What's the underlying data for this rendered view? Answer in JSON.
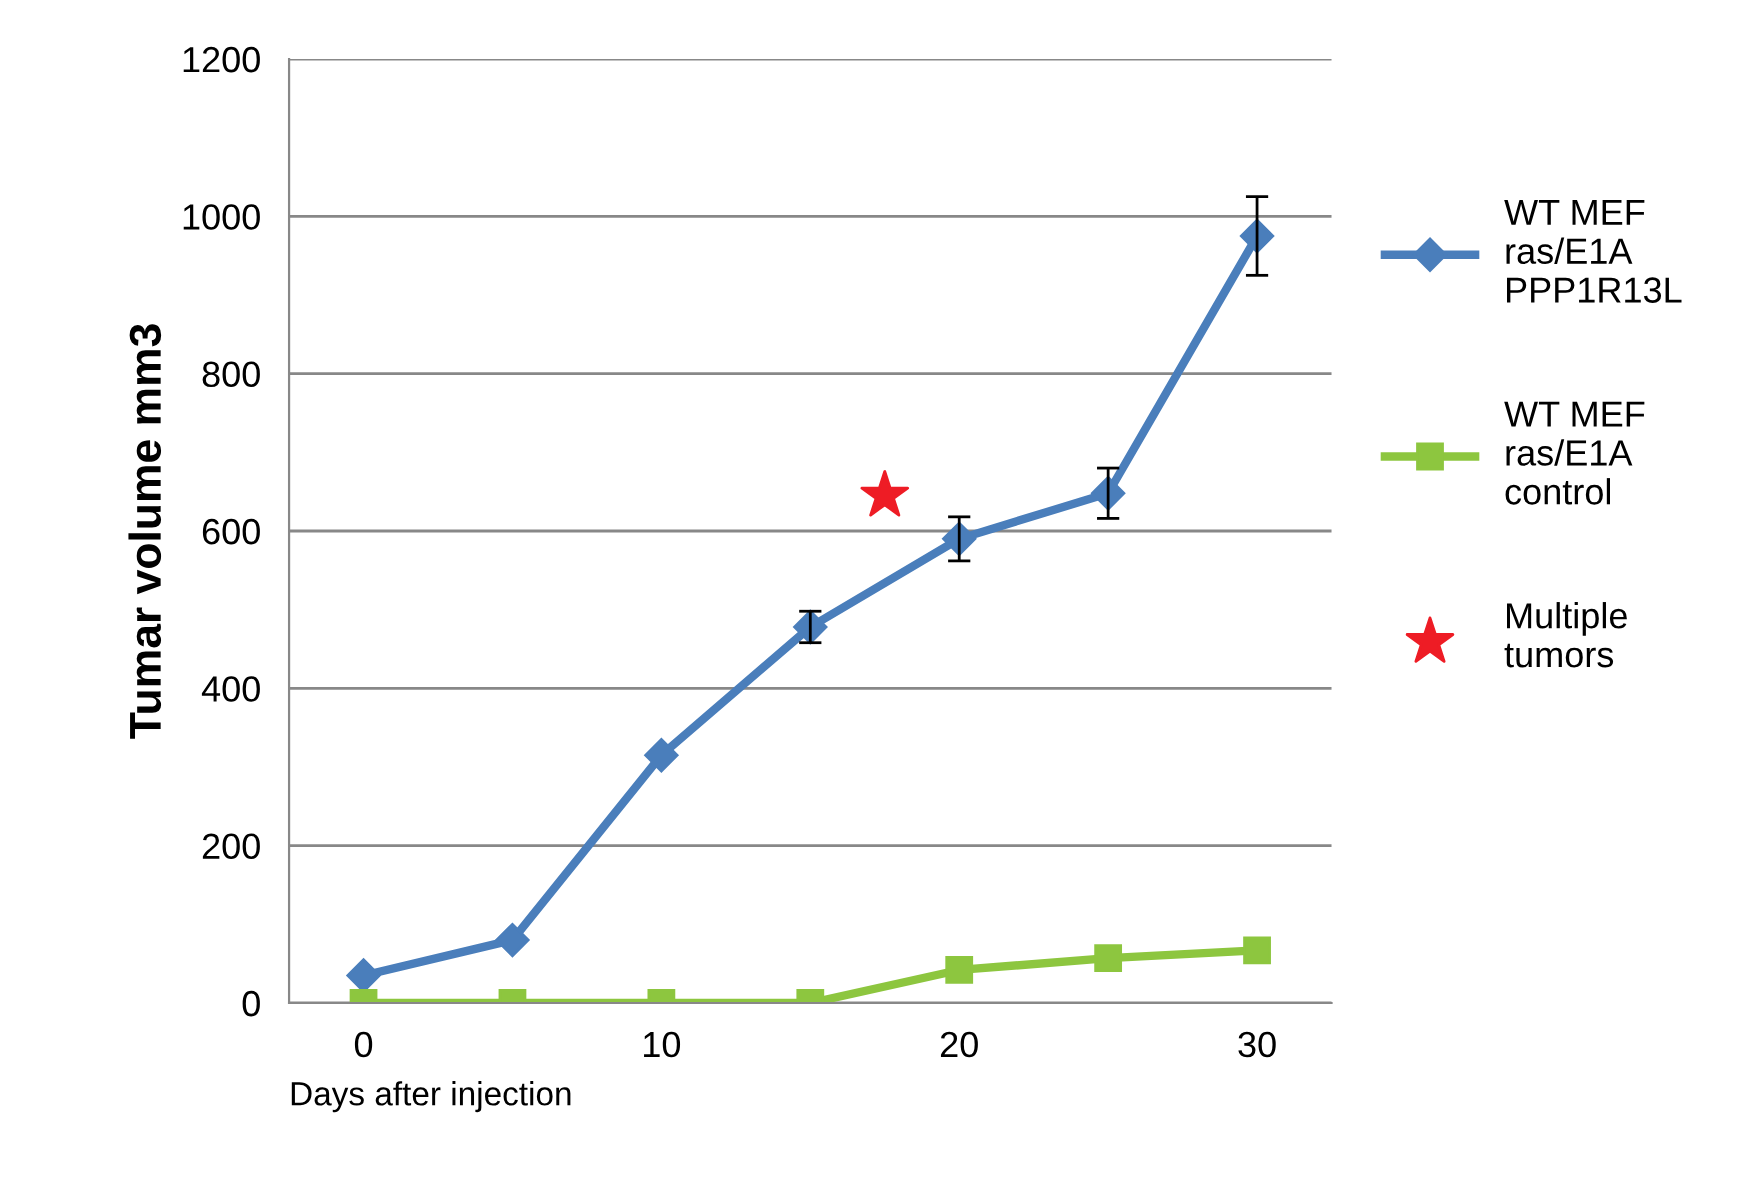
{
  "chart_data": {
    "type": "line",
    "xlabel": "Days after injection",
    "ylabel": "Tumar volume mm3",
    "x": [
      0,
      5,
      10,
      15,
      20,
      25,
      30
    ],
    "xlim": [
      -2.5,
      32.5
    ],
    "xticks": [
      0,
      10,
      20,
      30
    ],
    "ylim": [
      0,
      1200
    ],
    "yticks": [
      0,
      200,
      400,
      600,
      800,
      1000,
      1200
    ],
    "grid": "y",
    "legend": "right",
    "line_style": "solid",
    "series": [
      {
        "name": "WT MEF ras/E1A PPP1R13L",
        "color": "#4a7ebb",
        "marker": "diamond",
        "values": [
          35,
          80,
          315,
          478,
          590,
          648,
          975
        ],
        "errors": [
          null,
          null,
          null,
          20,
          28,
          32,
          50
        ]
      },
      {
        "name": "WT MEF ras/E1A control",
        "color": "#8dc63f",
        "marker": "square",
        "values": [
          0,
          0,
          0,
          0,
          42,
          57,
          67
        ]
      },
      {
        "name": "Multiple tumors",
        "type": "scatter",
        "color": "#ee1c25",
        "marker": "star",
        "x": [
          17.5
        ],
        "values": [
          645
        ]
      }
    ]
  }
}
